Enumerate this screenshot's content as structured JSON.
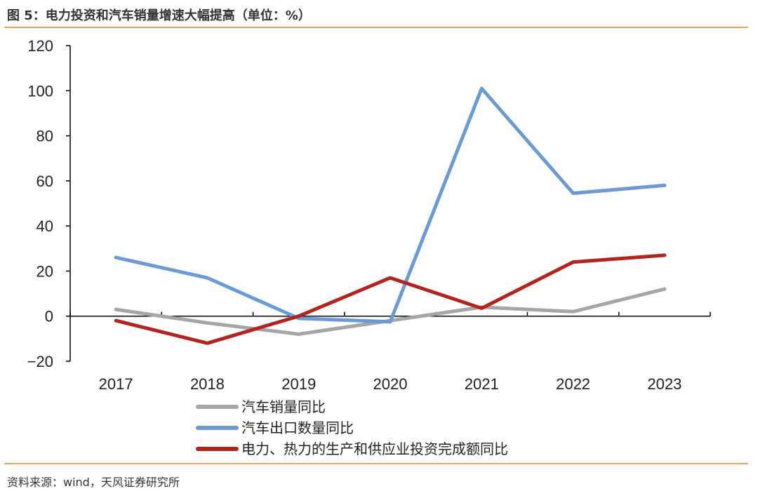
{
  "header": {
    "title": "图 5：电力投资和汽车销量增速大幅提高（单位：%）"
  },
  "footer": {
    "source": "资料来源：wind，天风证券研究所"
  },
  "chart_data": {
    "type": "line",
    "title": "电力投资和汽车销量增速大幅提高（单位：%）",
    "xlabel": "",
    "ylabel": "",
    "categories": [
      "2017",
      "2018",
      "2019",
      "2020",
      "2021",
      "2022",
      "2023"
    ],
    "ylim": [
      -20,
      120
    ],
    "yticks": [
      -20,
      0,
      20,
      40,
      60,
      80,
      100,
      120
    ],
    "ytick_labels": [
      "−20",
      "0",
      "20",
      "40",
      "60",
      "80",
      "100",
      "120"
    ],
    "legend_position": "bottom",
    "series": [
      {
        "name": "汽车销量同比",
        "color": "#a6a6a6",
        "values": [
          3,
          -3,
          -8,
          -2,
          4,
          2,
          12
        ]
      },
      {
        "name": "汽车出口数量同比",
        "color": "#6c9bd4",
        "values": [
          26,
          17,
          -1,
          -2.5,
          101,
          54.5,
          58
        ]
      },
      {
        "name": "电力、热力的生产和供应业投资完成额同比",
        "color": "#b3241f",
        "values": [
          -2,
          -12,
          0,
          17,
          3.5,
          24,
          27
        ]
      }
    ]
  }
}
